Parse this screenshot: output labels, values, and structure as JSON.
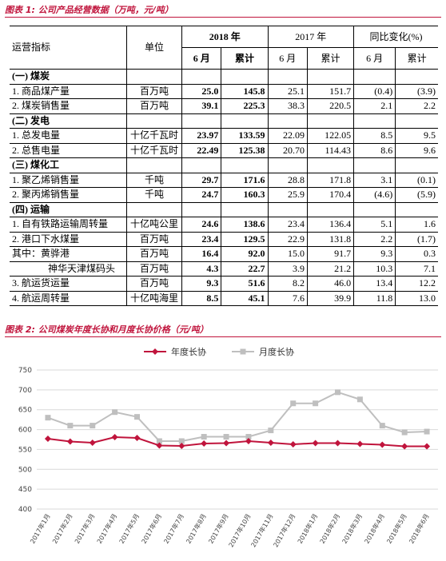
{
  "table": {
    "caption": "图表 1: 公司产品经营数据（万吨，元/吨）",
    "header": [
      "运营指标",
      "单位",
      "2018 年",
      "2017 年",
      "同比变化(%)"
    ],
    "subheader": [
      "6 月",
      "累计",
      "6 月",
      "累计",
      "6 月",
      "累计"
    ],
    "rows": [
      [
        "(一) 煤炭"
      ],
      [
        "1. 商品煤产量",
        "百万吨",
        "25.0",
        "145.8",
        "25.1",
        "151.7",
        "(0.4)",
        "(3.9)"
      ],
      [
        "2. 煤炭销售量",
        "百万吨",
        "39.1",
        "225.3",
        "38.3",
        "220.5",
        "2.1",
        "2.2"
      ],
      [
        "(二) 发电"
      ],
      [
        "1. 总发电量",
        "十亿千瓦时",
        "23.97",
        "133.59",
        "22.09",
        "122.05",
        "8.5",
        "9.5"
      ],
      [
        "2. 总售电量",
        "十亿千瓦时",
        "22.49",
        "125.38",
        "20.70",
        "114.43",
        "8.6",
        "9.6"
      ],
      [
        "(三) 煤化工"
      ],
      [
        "1. 聚乙烯销售量",
        "千吨",
        "29.7",
        "171.6",
        "28.8",
        "171.8",
        "3.1",
        "(0.1)"
      ],
      [
        "2. 聚丙烯销售量",
        "千吨",
        "24.7",
        "160.3",
        "25.9",
        "170.4",
        "(4.6)",
        "(5.9)"
      ],
      [
        "(四) 运输"
      ],
      [
        "1. 自有铁路运输周转量",
        "十亿吨公里",
        "24.6",
        "138.6",
        "23.4",
        "136.4",
        "5.1",
        "1.6"
      ],
      [
        "2. 港口下水煤量",
        "百万吨",
        "23.4",
        "129.5",
        "22.9",
        "131.8",
        "2.2",
        "(1.7)"
      ],
      [
        "其中：黄骅港",
        "百万吨",
        "16.4",
        "92.0",
        "15.0",
        "91.7",
        "9.3",
        "0.3"
      ],
      [
        "神华天津煤码头",
        "百万吨",
        "4.3",
        "22.7",
        "3.9",
        "21.2",
        "10.3",
        "7.1"
      ],
      [
        "3. 航运货运量",
        "百万吨",
        "9.3",
        "51.6",
        "8.2",
        "46.0",
        "13.4",
        "12.2"
      ],
      [
        "4. 航运周转量",
        "十亿吨海里",
        "8.5",
        "45.1",
        "7.6",
        "39.9",
        "11.8",
        "13.0"
      ]
    ]
  },
  "chart_data": {
    "type": "line",
    "title": "图表 2: 公司煤炭年度长协和月度长协价格（元/吨）",
    "categories": [
      "2017年1月",
      "2017年2月",
      "2017年3月",
      "2017年4月",
      "2017年5月",
      "2017年6月",
      "2017年7月",
      "2017年8月",
      "2017年9月",
      "2017年10月",
      "2017年11月",
      "2017年12月",
      "2018年1月",
      "2018年2月",
      "2018年3月",
      "2018年4月",
      "2018年5月",
      "2018年6月"
    ],
    "series": [
      {
        "name": "年度长协",
        "color": "#c0143c",
        "values": [
          577,
          570,
          567,
          581,
          579,
          560,
          559,
          565,
          566,
          571,
          567,
          563,
          566,
          566,
          564,
          562,
          558,
          558
        ]
      },
      {
        "name": "月度长协",
        "color": "#bfbfbf",
        "values": [
          630,
          610,
          610,
          644,
          632,
          571,
          571,
          582,
          582,
          582,
          598,
          666,
          666,
          694,
          676,
          610,
          593,
          595
        ]
      }
    ],
    "ylim": [
      400,
      750
    ],
    "yticks": [
      400,
      450,
      500,
      550,
      600,
      650,
      700,
      750
    ],
    "grid": true
  }
}
